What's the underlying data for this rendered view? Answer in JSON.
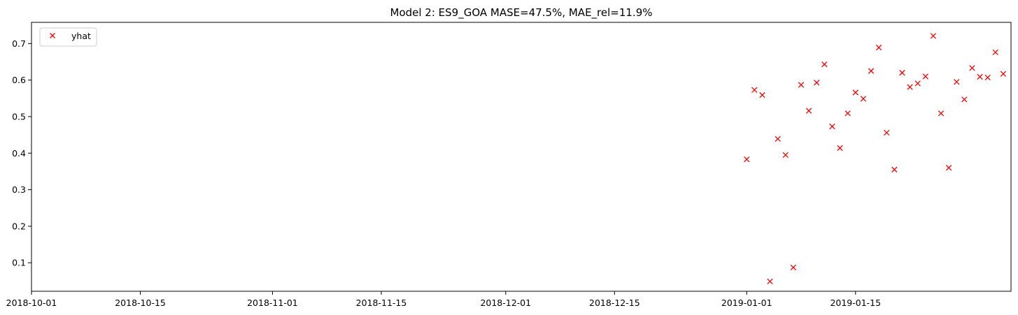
{
  "chart_data": {
    "type": "scatter",
    "title": "Model 2: ES9_GOA MASE=47.5%, MAE_rel=11.9%",
    "xlabel": "",
    "ylabel": "",
    "x_axis_type": "date",
    "xlim": [
      "2018-10-01",
      "2019-02-04"
    ],
    "ylim": [
      0.022,
      0.758
    ],
    "x_ticks": [
      "2018-10-01",
      "2018-10-15",
      "2018-11-01",
      "2018-11-15",
      "2018-12-01",
      "2018-12-15",
      "2019-01-01",
      "2019-01-15"
    ],
    "y_ticks": [
      0.1,
      0.2,
      0.3,
      0.4,
      0.5,
      0.6,
      0.7
    ],
    "grid": false,
    "legend": {
      "position": "top-left",
      "entries": [
        {
          "label": "yhat",
          "marker": "x",
          "color": "#ff0000"
        }
      ]
    },
    "series": [
      {
        "name": "yhat",
        "marker": "x",
        "color": "#ff0000",
        "x": [
          "2019-01-01",
          "2019-01-02",
          "2019-01-03",
          "2019-01-04",
          "2019-01-05",
          "2019-01-06",
          "2019-01-07",
          "2019-01-08",
          "2019-01-09",
          "2019-01-10",
          "2019-01-11",
          "2019-01-12",
          "2019-01-13",
          "2019-01-14",
          "2019-01-15",
          "2019-01-16",
          "2019-01-17",
          "2019-01-18",
          "2019-01-19",
          "2019-01-20",
          "2019-01-21",
          "2019-01-22",
          "2019-01-23",
          "2019-01-24",
          "2019-01-25",
          "2019-01-26",
          "2019-01-27",
          "2019-01-28",
          "2019-01-29",
          "2019-01-30",
          "2019-01-31",
          "2019-02-01",
          "2019-02-02",
          "2019-02-03"
        ],
        "y": [
          0.383,
          0.573,
          0.559,
          0.049,
          0.439,
          0.395,
          0.087,
          0.587,
          0.516,
          0.593,
          0.643,
          0.473,
          0.414,
          0.509,
          0.566,
          0.549,
          0.625,
          0.689,
          0.456,
          0.355,
          0.62,
          0.581,
          0.591,
          0.61,
          0.721,
          0.509,
          0.36,
          0.595,
          0.547,
          0.633,
          0.609,
          0.607,
          0.676,
          0.617
        ]
      }
    ]
  }
}
